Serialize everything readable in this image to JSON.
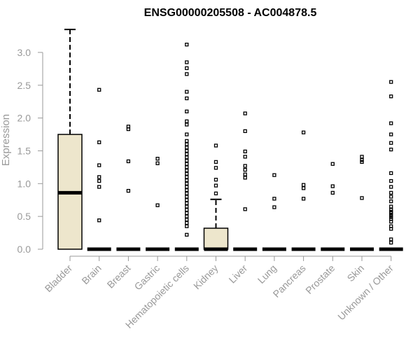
{
  "chart_data": {
    "type": "boxplot",
    "title": "ENSG00000205508 - AC004878.5",
    "ylabel": "Expression",
    "xlabel": "",
    "ylim": [
      0,
      3.35
    ],
    "yticks": [
      "0.0",
      "0.5",
      "1.0",
      "1.5",
      "2.0",
      "2.5",
      "3.0"
    ],
    "box_color": "#ede6cc",
    "categories": [
      "Bladder",
      "Brain",
      "Breast",
      "Gastric",
      "Hematopoietic cells",
      "Kidney",
      "Liver",
      "Lung",
      "Pancreas",
      "Prostate",
      "Skin",
      "Unknown / Other"
    ],
    "boxes": [
      {
        "category": "Bladder",
        "min": 0,
        "q1": 0,
        "median": 0.86,
        "q3": 1.75,
        "max": 3.35,
        "outliers": []
      },
      {
        "category": "Brain",
        "min": 0,
        "q1": 0,
        "median": 0,
        "q3": 0,
        "max": 0,
        "outliers": [
          2.43,
          1.63,
          1.28,
          1.1,
          1.04,
          0.95,
          0.44
        ]
      },
      {
        "category": "Breast",
        "min": 0,
        "q1": 0,
        "median": 0,
        "q3": 0,
        "max": 0,
        "outliers": [
          1.87,
          1.83,
          1.34,
          0.89
        ]
      },
      {
        "category": "Gastric",
        "min": 0,
        "q1": 0,
        "median": 0,
        "q3": 0,
        "max": 0,
        "outliers": [
          1.38,
          1.31,
          0.67
        ]
      },
      {
        "category": "Hematopoietic cells",
        "min": 0,
        "q1": 0,
        "median": 0,
        "q3": 0,
        "max": 0,
        "outliers": [
          3.12,
          2.85,
          2.76,
          2.67,
          2.4,
          2.3,
          2.1,
          1.95,
          1.9,
          1.75,
          1.65,
          1.6,
          1.55,
          1.5,
          1.45,
          1.4,
          1.35,
          1.3,
          1.25,
          1.2,
          1.15,
          1.1,
          1.05,
          1.0,
          0.95,
          0.9,
          0.85,
          0.8,
          0.75,
          0.7,
          0.65,
          0.6,
          0.55,
          0.5,
          0.45,
          0.4,
          0.35,
          0.22
        ]
      },
      {
        "category": "Kidney",
        "min": 0,
        "q1": 0,
        "median": 0,
        "q3": 0.32,
        "max": 0.76,
        "outliers": [
          1.58,
          1.33,
          1.24,
          1.06,
          0.97,
          0.85
        ]
      },
      {
        "category": "Liver",
        "min": 0,
        "q1": 0,
        "median": 0,
        "q3": 0,
        "max": 0,
        "outliers": [
          2.07,
          1.8,
          1.49,
          1.41,
          1.27,
          1.21,
          1.14,
          1.09,
          0.61
        ]
      },
      {
        "category": "Lung",
        "min": 0,
        "q1": 0,
        "median": 0,
        "q3": 0,
        "max": 0,
        "outliers": [
          1.13,
          0.77,
          0.64
        ]
      },
      {
        "category": "Pancreas",
        "min": 0,
        "q1": 0,
        "median": 0,
        "q3": 0,
        "max": 0,
        "outliers": [
          1.78,
          0.98,
          0.93,
          0.77
        ]
      },
      {
        "category": "Prostate",
        "min": 0,
        "q1": 0,
        "median": 0,
        "q3": 0,
        "max": 0,
        "outliers": [
          1.3,
          0.96,
          0.86
        ]
      },
      {
        "category": "Skin",
        "min": 0,
        "q1": 0,
        "median": 0,
        "q3": 0,
        "max": 0,
        "outliers": [
          1.41,
          1.36,
          1.33,
          0.78
        ]
      },
      {
        "category": "Unknown / Other",
        "min": 0,
        "q1": 0,
        "median": 0,
        "q3": 0,
        "max": 0,
        "outliers": [
          2.55,
          2.33,
          1.92,
          1.75,
          1.62,
          1.52,
          1.16,
          1.04,
          0.95,
          0.86,
          0.8,
          0.73,
          0.65,
          0.6,
          0.57,
          0.55,
          0.52,
          0.49,
          0.46,
          0.42,
          0.35,
          0.31,
          0.15,
          0.1
        ]
      }
    ]
  }
}
